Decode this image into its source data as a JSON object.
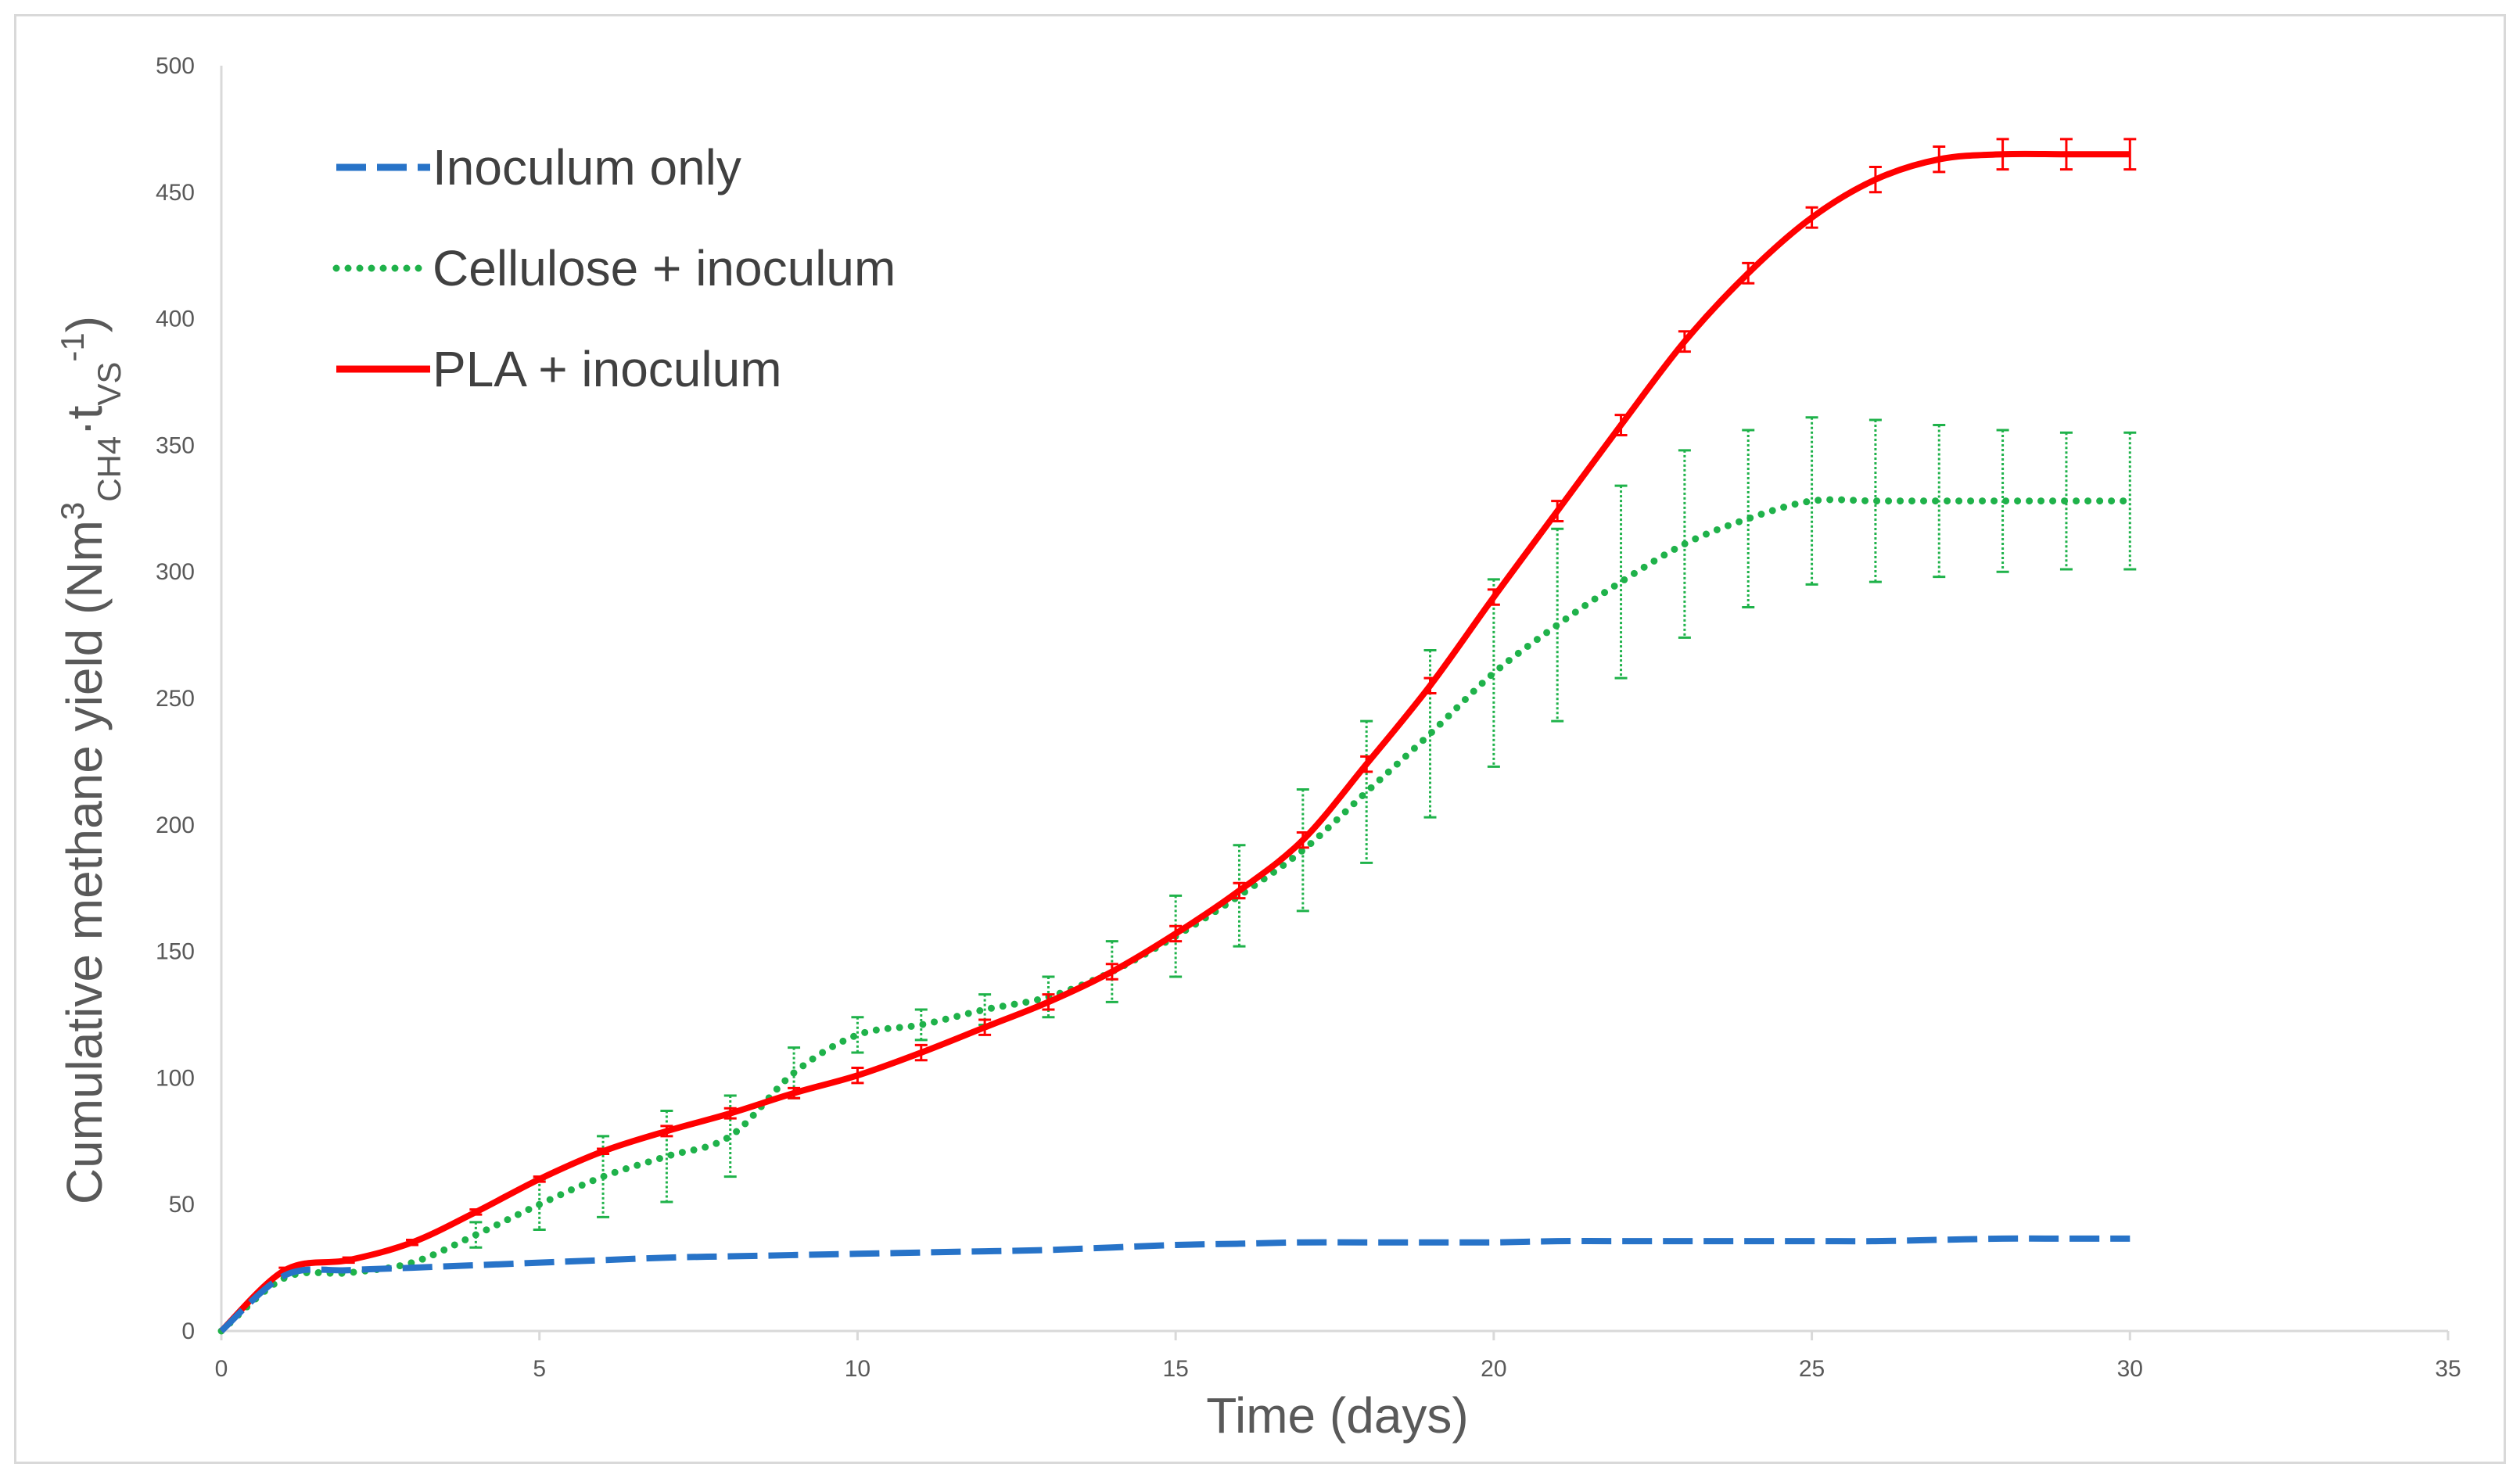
{
  "chart_data": {
    "type": "line",
    "title": "",
    "xlabel": "Time (days)",
    "ylabel": {
      "main": "Cumulative methane yield (Nm",
      "sup1": "3",
      "sub1": "CH4",
      "dot": "·t",
      "sub2": "VS",
      "sup2": "-1",
      "close": ")"
    },
    "xlim": [
      0,
      35
    ],
    "ylim": [
      0,
      500
    ],
    "xticks": [
      0,
      5,
      10,
      15,
      20,
      25,
      30,
      35
    ],
    "yticks": [
      0,
      50,
      100,
      150,
      200,
      250,
      300,
      350,
      400,
      450,
      500
    ],
    "grid": false,
    "legend_position": "top-left",
    "series": [
      {
        "name": "Inoculum only",
        "color": "#2773c8",
        "style": "dashed",
        "x": [
          0,
          1,
          2,
          3,
          4,
          5,
          6,
          7,
          8,
          9,
          10,
          11,
          12,
          13,
          14,
          15,
          16,
          17,
          18,
          19,
          20,
          21,
          22,
          23,
          24,
          25,
          26,
          27,
          28,
          29,
          30
        ],
        "y": [
          0,
          22,
          24,
          25,
          26,
          27,
          28,
          29,
          29.5,
          30,
          30.5,
          31,
          31.5,
          32,
          33,
          34,
          34.5,
          35,
          35,
          35,
          35,
          35.5,
          35.5,
          35.5,
          35.5,
          35.5,
          35.5,
          36,
          36.5,
          36.5,
          36.5
        ]
      },
      {
        "name": "Cellulose + inoculum",
        "color": "#1fb24a",
        "style": "dotted",
        "x": [
          0,
          1,
          2,
          3,
          4,
          5,
          6,
          7,
          8,
          9,
          10,
          11,
          12,
          13,
          14,
          15,
          16,
          17,
          18,
          19,
          20,
          21,
          22,
          23,
          24,
          25,
          26,
          27,
          28,
          29,
          30
        ],
        "y": [
          0,
          21,
          23,
          27,
          38,
          50,
          61,
          69,
          77,
          102,
          117,
          121,
          127,
          132,
          142,
          156,
          172,
          190,
          213,
          236,
          260,
          279,
          296,
          311,
          321,
          328,
          328,
          328,
          328,
          328,
          328
        ],
        "err": [
          0,
          0,
          0,
          0,
          5,
          10,
          16,
          18,
          16,
          10,
          7,
          6,
          6,
          8,
          12,
          16,
          20,
          24,
          28,
          33,
          37,
          38,
          38,
          37,
          35,
          33,
          32,
          30,
          28,
          27,
          27
        ]
      },
      {
        "name": "PLA + inoculum",
        "color": "#ff0000",
        "style": "solid",
        "x": [
          0,
          1,
          2,
          3,
          4,
          5,
          6,
          7,
          8,
          9,
          10,
          11,
          12,
          13,
          14,
          15,
          16,
          17,
          18,
          19,
          20,
          21,
          22,
          23,
          24,
          25,
          26,
          27,
          28,
          29,
          30
        ],
        "y": [
          0,
          24,
          28,
          35,
          47,
          60,
          71,
          79,
          86,
          94,
          101,
          110,
          120,
          130,
          142,
          157,
          174,
          194,
          224,
          255,
          290,
          324,
          358,
          391,
          418,
          440,
          455,
          463,
          465,
          465,
          465
        ],
        "err": [
          0,
          1,
          1,
          1,
          1,
          1,
          1,
          2,
          2,
          2,
          3,
          3,
          3,
          3,
          3,
          3,
          3,
          3,
          3,
          3,
          3,
          4,
          4,
          4,
          4,
          4,
          5,
          5,
          6,
          6,
          6
        ]
      }
    ]
  }
}
